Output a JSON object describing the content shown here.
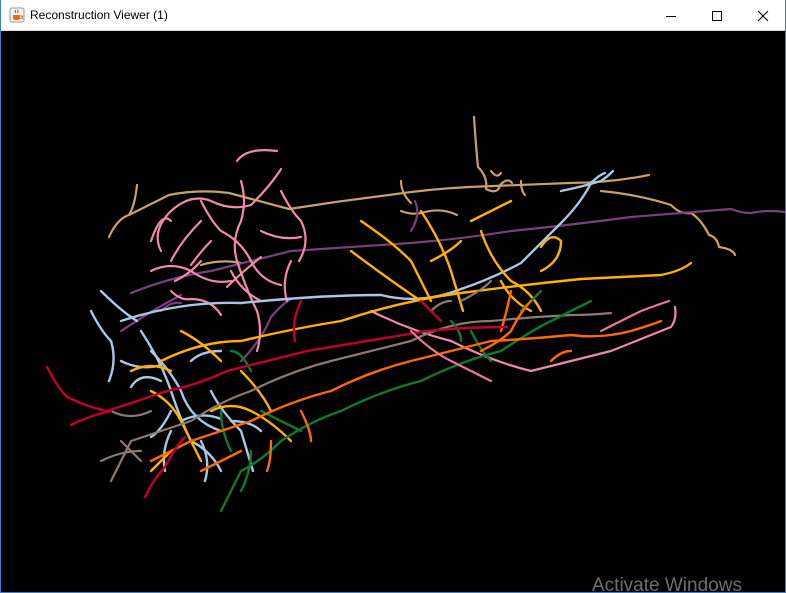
{
  "window": {
    "title": "Reconstruction Viewer (1)",
    "app_icon": "java-coffee-cup-icon",
    "controls": {
      "minimize_icon": "minimize-icon",
      "maximize_icon": "maximize-icon",
      "close_icon": "close-icon"
    }
  },
  "viewer": {
    "background_color": "#000000",
    "neuron_colors": [
      {
        "name": "tan",
        "hex": "#c8a06a"
      },
      {
        "name": "purple",
        "hex": "#7a3f80"
      },
      {
        "name": "pink",
        "hex": "#f08aa8"
      },
      {
        "name": "light-blue",
        "hex": "#a9c6e3"
      },
      {
        "name": "gold",
        "hex": "#ffb000"
      },
      {
        "name": "gray-brown",
        "hex": "#8c7a70"
      },
      {
        "name": "green",
        "hex": "#0c7a30"
      },
      {
        "name": "orange",
        "hex": "#ff6a00"
      },
      {
        "name": "crimson",
        "hex": "#c0002a"
      },
      {
        "name": "rose",
        "hex": "#e8789a"
      }
    ]
  },
  "overlay": {
    "watermark": "Activate Windows"
  }
}
